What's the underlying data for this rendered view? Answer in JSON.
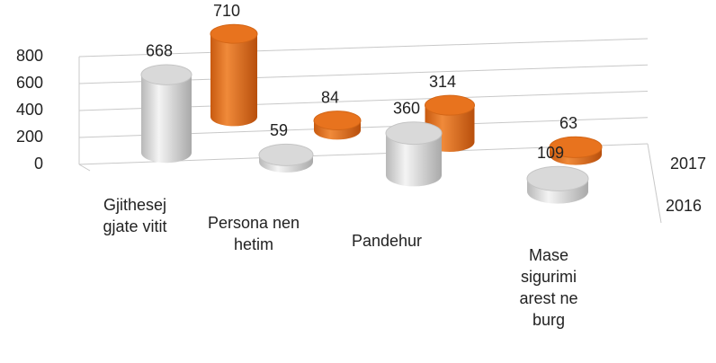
{
  "chart_data": {
    "type": "bar3d",
    "categories": [
      "Gjithesej gjate vitit",
      "Persona nen hetim",
      "Pandehur",
      "Mase sigurimi arest ne burg"
    ],
    "series": [
      {
        "name": "2016",
        "color": "#d9d9d9",
        "values": [
          668,
          59,
          360,
          109
        ]
      },
      {
        "name": "2017",
        "color": "#e8731e",
        "values": [
          710,
          84,
          314,
          63
        ]
      }
    ],
    "ylim": [
      0,
      800
    ],
    "yticks": [
      0,
      200,
      400,
      600,
      800
    ],
    "grid": true
  }
}
